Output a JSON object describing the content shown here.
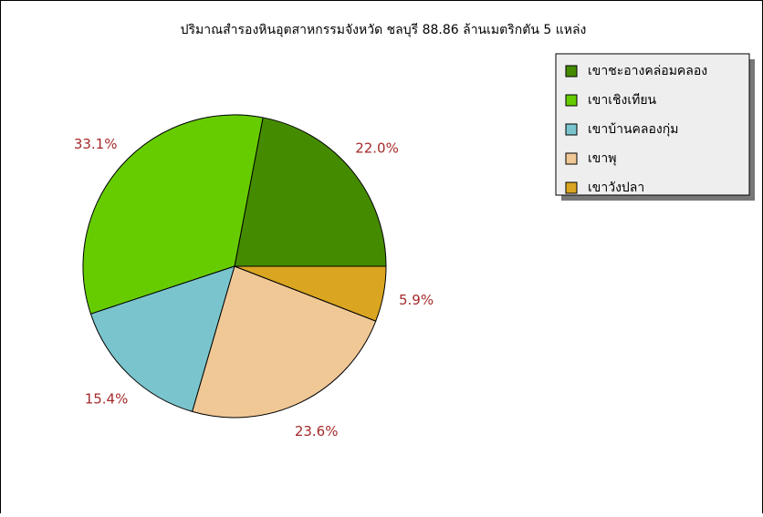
{
  "chart_data": {
    "type": "pie",
    "title": "ปริมาณสำรองหินอุตสาหกรรมจังหวัด ชลบุรี 88.86 ล้านเมตริกตัน 5 แหล่ง",
    "categories": [
      "เขาชะอางคล่อมคลอง",
      "เขาเชิงเทียน",
      "เขาบ้านคลองกุ่ม",
      "เขาพุ",
      "เขาวังปลา"
    ],
    "values": [
      22.0,
      33.1,
      15.4,
      23.6,
      5.9
    ],
    "value_labels": [
      "22.0%",
      "33.1%",
      "15.4%",
      "23.6%",
      "5.9%"
    ],
    "colors": [
      "#458b00",
      "#66cc00",
      "#7ac5cd",
      "#f0c896",
      "#daa520"
    ],
    "legend": "top-right"
  }
}
